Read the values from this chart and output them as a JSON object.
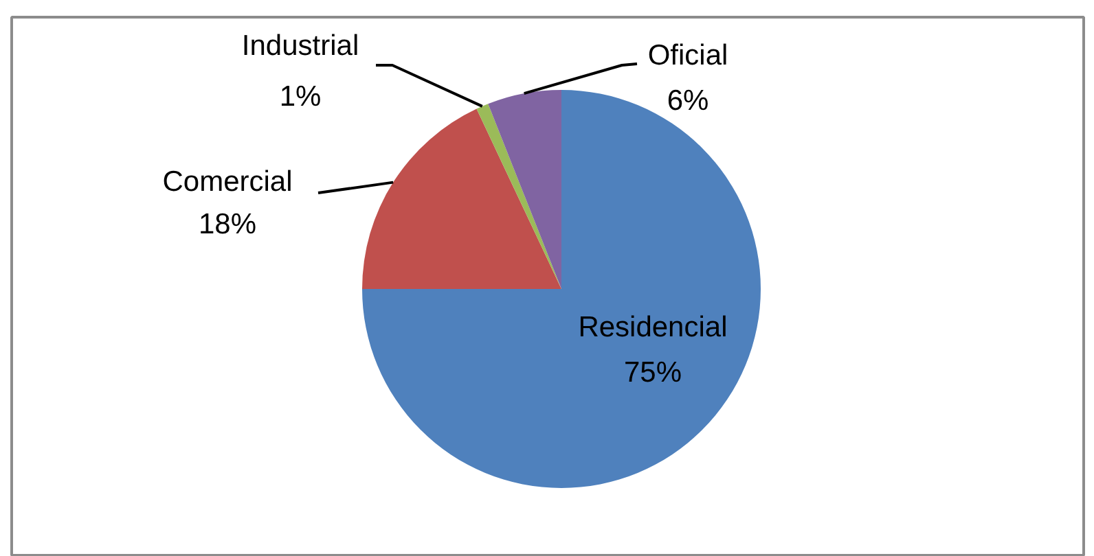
{
  "chart_data": {
    "type": "pie",
    "categories": [
      "Residencial",
      "Comercial",
      "Industrial",
      "Oficial"
    ],
    "values": [
      75,
      18,
      1,
      6
    ],
    "colors": [
      "#4f81bd",
      "#c0504d",
      "#9bbb59",
      "#8064a2"
    ],
    "value_labels": [
      "75%",
      "18%",
      "1%",
      "6%"
    ]
  }
}
